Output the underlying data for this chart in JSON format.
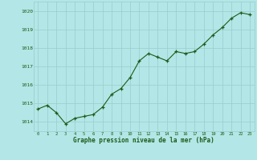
{
  "x": [
    0,
    1,
    2,
    3,
    4,
    5,
    6,
    7,
    8,
    9,
    10,
    11,
    12,
    13,
    14,
    15,
    16,
    17,
    18,
    19,
    20,
    21,
    22,
    23
  ],
  "y": [
    1014.7,
    1014.9,
    1014.5,
    1013.9,
    1014.2,
    1014.3,
    1014.4,
    1014.8,
    1015.5,
    1015.8,
    1016.4,
    1017.3,
    1017.7,
    1017.5,
    1017.3,
    1017.8,
    1017.7,
    1017.8,
    1018.2,
    1018.7,
    1019.1,
    1019.6,
    1019.9,
    1019.8
  ],
  "ylim": [
    1013.5,
    1020.5
  ],
  "yticks": [
    1014,
    1015,
    1016,
    1017,
    1018,
    1019,
    1020
  ],
  "xticks": [
    0,
    1,
    2,
    3,
    4,
    5,
    6,
    7,
    8,
    9,
    10,
    11,
    12,
    13,
    14,
    15,
    16,
    17,
    18,
    19,
    20,
    21,
    22,
    23
  ],
  "line_color": "#1a5c1a",
  "marker_color": "#1a5c1a",
  "bg_color": "#b3e6e6",
  "grid_color": "#99cccc",
  "xlabel": "Graphe pression niveau de la mer (hPa)",
  "xlabel_color": "#1a5c1a",
  "tick_color": "#1a5c1a",
  "xlim_left": -0.5,
  "xlim_right": 23.5
}
